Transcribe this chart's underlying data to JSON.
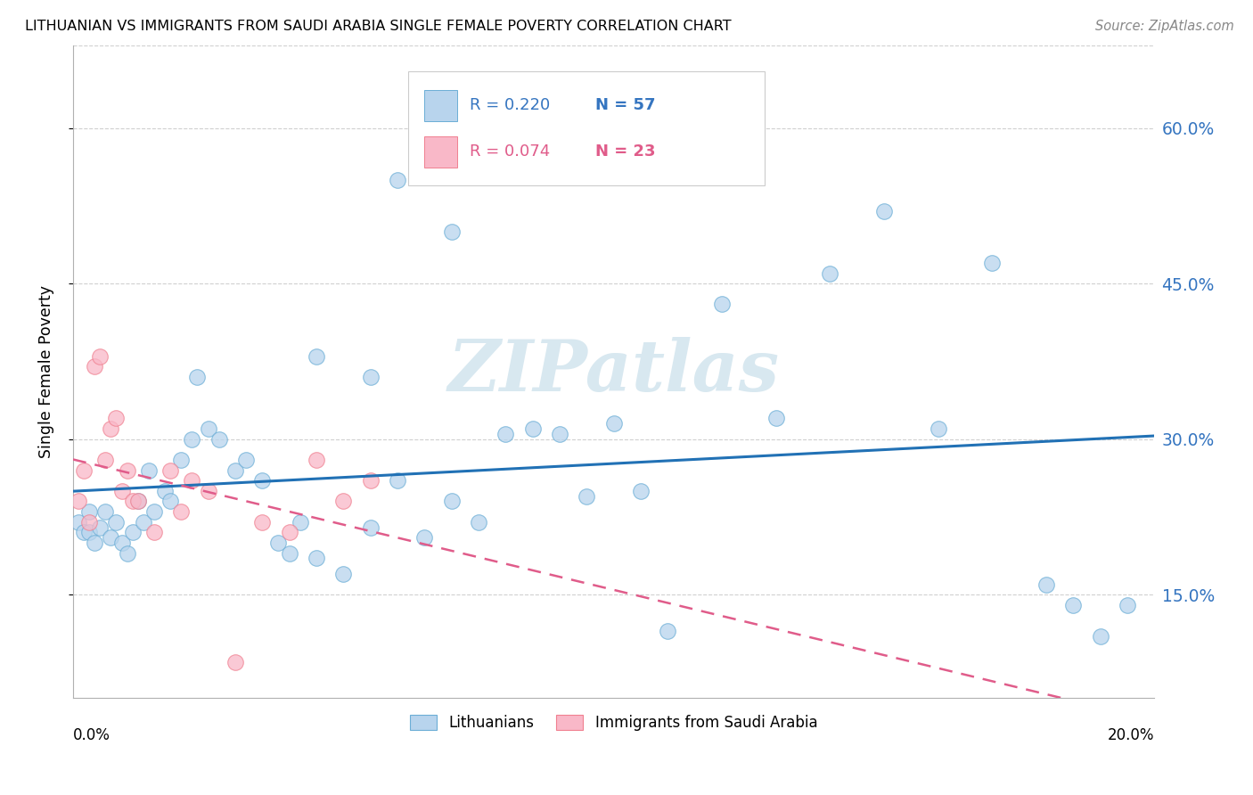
{
  "title": "LITHUANIAN VS IMMIGRANTS FROM SAUDI ARABIA SINGLE FEMALE POVERTY CORRELATION CHART",
  "source": "Source: ZipAtlas.com",
  "ylabel": "Single Female Poverty",
  "y_tick_labels": [
    "15.0%",
    "30.0%",
    "45.0%",
    "60.0%"
  ],
  "y_tick_values": [
    15.0,
    30.0,
    45.0,
    60.0
  ],
  "xlim": [
    0.0,
    20.0
  ],
  "ylim": [
    5.0,
    68.0
  ],
  "trendline1_color": "#2171b5",
  "trendline2_color": "#e05c8a",
  "watermark": "ZIPatlas",
  "blue_scatter_x": [
    0.1,
    0.2,
    0.3,
    0.3,
    0.4,
    0.5,
    0.6,
    0.7,
    0.8,
    0.9,
    1.0,
    1.1,
    1.2,
    1.3,
    1.4,
    1.5,
    1.7,
    1.8,
    2.0,
    2.2,
    2.3,
    2.5,
    2.7,
    3.0,
    3.2,
    3.5,
    3.8,
    4.0,
    4.2,
    4.5,
    5.0,
    5.5,
    6.0,
    6.5,
    7.0,
    7.5,
    8.0,
    8.5,
    9.0,
    9.5,
    10.0,
    10.5,
    11.0,
    12.0,
    13.0,
    14.0,
    15.0,
    16.0,
    17.0,
    18.0,
    18.5,
    19.0,
    19.5,
    4.5,
    5.5,
    6.0,
    7.0
  ],
  "blue_scatter_y": [
    22.0,
    21.0,
    23.0,
    21.0,
    20.0,
    21.5,
    23.0,
    20.5,
    22.0,
    20.0,
    19.0,
    21.0,
    24.0,
    22.0,
    27.0,
    23.0,
    25.0,
    24.0,
    28.0,
    30.0,
    36.0,
    31.0,
    30.0,
    27.0,
    28.0,
    26.0,
    20.0,
    19.0,
    22.0,
    18.5,
    17.0,
    21.5,
    26.0,
    20.5,
    24.0,
    22.0,
    30.5,
    31.0,
    30.5,
    24.5,
    31.5,
    25.0,
    11.5,
    43.0,
    32.0,
    46.0,
    52.0,
    31.0,
    47.0,
    16.0,
    14.0,
    11.0,
    14.0,
    38.0,
    36.0,
    55.0,
    50.0
  ],
  "pink_scatter_x": [
    0.1,
    0.2,
    0.3,
    0.4,
    0.5,
    0.6,
    0.7,
    0.8,
    0.9,
    1.0,
    1.1,
    1.2,
    1.5,
    1.8,
    2.0,
    2.2,
    2.5,
    3.0,
    3.5,
    4.0,
    4.5,
    5.0,
    5.5
  ],
  "pink_scatter_y": [
    24.0,
    27.0,
    22.0,
    37.0,
    38.0,
    28.0,
    31.0,
    32.0,
    25.0,
    27.0,
    24.0,
    24.0,
    21.0,
    27.0,
    23.0,
    26.0,
    25.0,
    8.5,
    22.0,
    21.0,
    28.0,
    24.0,
    26.0
  ]
}
